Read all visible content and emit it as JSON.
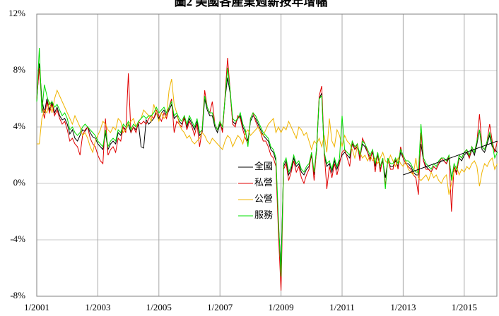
{
  "chart_data": {
    "type": "line",
    "title": "圖2 美國各產業週薪按年增幅",
    "categories": [
      "1/2001",
      null,
      null,
      null,
      null,
      null,
      null,
      null,
      null,
      null,
      null,
      null,
      null,
      null,
      null,
      null,
      null,
      null,
      null,
      null,
      null,
      null,
      null,
      null,
      "1/2003",
      null,
      null,
      null,
      null,
      null,
      null,
      null,
      null,
      null,
      null,
      null,
      null,
      null,
      null,
      null,
      null,
      null,
      null,
      null,
      null,
      null,
      null,
      null,
      "1/2005",
      null,
      null,
      null,
      null,
      null,
      null,
      null,
      null,
      null,
      null,
      null,
      null,
      null,
      null,
      null,
      null,
      null,
      null,
      null,
      null,
      null,
      null,
      null,
      "1/2007",
      null,
      null,
      null,
      null,
      null,
      null,
      null,
      null,
      null,
      null,
      null,
      null,
      null,
      null,
      null,
      null,
      null,
      null,
      null,
      null,
      null,
      null,
      null,
      "1/2009",
      null,
      null,
      null,
      null,
      null,
      null,
      null,
      null,
      null,
      null,
      null,
      null,
      null,
      null,
      null,
      null,
      null,
      null,
      null,
      null,
      null,
      null,
      null,
      "1/2011",
      null,
      null,
      null,
      null,
      null,
      null,
      null,
      null,
      null,
      null,
      null,
      null,
      null,
      null,
      null,
      null,
      null,
      null,
      null,
      null,
      null,
      null,
      null,
      "1/2013",
      null,
      null,
      null,
      null,
      null,
      null,
      null,
      null,
      null,
      null,
      null,
      null,
      null,
      null,
      null,
      null,
      null,
      null,
      null,
      null,
      null,
      null,
      null,
      "1/2015",
      null,
      null,
      null,
      null,
      null,
      null,
      null,
      null,
      null,
      null,
      null,
      null,
      null
    ],
    "series": [
      {
        "name": "全國",
        "color": "#000000",
        "values": [
          5.8,
          8.5,
          6.0,
          5.0,
          6.0,
          5.2,
          5.8,
          5.0,
          5.4,
          4.8,
          4.5,
          4.6,
          4.2,
          3.5,
          3.8,
          3.2,
          3.0,
          3.4,
          3.8,
          3.7,
          4.0,
          3.6,
          3.3,
          3.2,
          2.8,
          2.6,
          2.4,
          3.6,
          2.4,
          2.8,
          3.0,
          2.8,
          3.6,
          3.4,
          4.0,
          3.8,
          4.2,
          3.6,
          4.0,
          3.8,
          4.2,
          2.6,
          2.5,
          4.5,
          4.2,
          4.4,
          4.6,
          5.0,
          4.6,
          5.0,
          5.2,
          4.8,
          5.2,
          5.6,
          4.6,
          4.8,
          4.4,
          4.2,
          4.6,
          4.0,
          4.6,
          4.2,
          3.8,
          4.4,
          3.4,
          3.6,
          6.0,
          5.2,
          4.8,
          4.8,
          4.0,
          3.6,
          4.2,
          3.8,
          6.0,
          7.5,
          6.4,
          4.4,
          4.2,
          4.6,
          4.8,
          4.0,
          3.6,
          3.0,
          4.4,
          4.8,
          4.6,
          4.2,
          3.8,
          3.4,
          3.2,
          3.0,
          2.4,
          2.2,
          1.6,
          -3.0,
          -6.0,
          1.2,
          1.6,
          0.6,
          1.0,
          1.8,
          1.2,
          1.4,
          0.8,
          0.6,
          1.0,
          1.2,
          2.0,
          0.6,
          2.4,
          6.0,
          6.4,
          2.0,
          1.2,
          1.4,
          0.8,
          1.6,
          1.0,
          1.6,
          2.0,
          2.2,
          2.0,
          1.8,
          2.8,
          2.4,
          2.6,
          1.8,
          2.8,
          2.6,
          2.2,
          1.8,
          2.2,
          1.2,
          2.0,
          1.0,
          1.6,
          0.4,
          1.6,
          1.2,
          1.2,
          1.6,
          1.2,
          2.2,
          1.8,
          1.4,
          1.4,
          1.2,
          0.8,
          0.6,
          0.6,
          2.8,
          1.6,
          1.2,
          1.0,
          0.8,
          1.2,
          1.0,
          1.4,
          1.6,
          1.6,
          1.4,
          1.8,
          0.4,
          1.2,
          0.8,
          1.8,
          1.6,
          2.0,
          2.2,
          1.8,
          2.4,
          2.0,
          2.8,
          3.8,
          2.4,
          2.2,
          2.8,
          3.4,
          2.6,
          2.4,
          2.2
        ]
      },
      {
        "name": "私營",
        "color": "#e00000",
        "values": [
          6.0,
          8.2,
          5.6,
          4.6,
          5.8,
          5.0,
          5.6,
          4.8,
          5.2,
          4.6,
          4.2,
          4.4,
          3.8,
          3.0,
          3.2,
          2.8,
          2.6,
          2.0,
          3.4,
          3.8,
          4.0,
          3.2,
          2.8,
          2.6,
          2.0,
          1.6,
          1.4,
          4.6,
          2.0,
          2.4,
          2.6,
          2.2,
          3.2,
          3.0,
          4.0,
          3.6,
          7.8,
          3.6,
          4.0,
          3.6,
          4.4,
          4.2,
          4.4,
          4.2,
          4.6,
          4.8,
          4.6,
          5.2,
          4.8,
          4.4,
          5.0,
          4.6,
          5.4,
          6.0,
          3.6,
          4.4,
          4.2,
          4.0,
          4.8,
          3.8,
          4.4,
          4.0,
          3.4,
          4.2,
          2.6,
          3.8,
          6.6,
          5.4,
          5.0,
          5.8,
          4.2,
          3.8,
          4.4,
          3.6,
          6.2,
          8.9,
          6.6,
          4.2,
          4.0,
          4.8,
          4.6,
          3.8,
          3.2,
          2.8,
          4.6,
          5.0,
          4.4,
          4.0,
          3.6,
          3.0,
          3.0,
          2.6,
          2.0,
          1.8,
          1.2,
          -3.6,
          -7.6,
          1.0,
          1.4,
          0.2,
          0.8,
          1.6,
          0.8,
          1.2,
          0.4,
          0.0,
          0.6,
          1.0,
          2.2,
          0.2,
          2.6,
          6.2,
          6.9,
          2.2,
          -0.4,
          1.2,
          0.4,
          1.4,
          0.6,
          1.4,
          2.2,
          2.4,
          1.8,
          1.2,
          3.0,
          2.4,
          2.8,
          1.6,
          3.2,
          2.8,
          2.2,
          1.6,
          2.4,
          0.8,
          2.2,
          0.8,
          1.8,
          -0.2,
          1.8,
          1.0,
          1.0,
          1.8,
          1.0,
          2.6,
          1.8,
          1.4,
          1.2,
          1.0,
          0.6,
          0.4,
          -0.8,
          3.6,
          1.6,
          1.0,
          1.0,
          0.8,
          1.2,
          1.0,
          1.4,
          1.8,
          1.6,
          1.4,
          2.0,
          -2.0,
          1.2,
          0.6,
          2.0,
          1.8,
          2.2,
          2.4,
          1.8,
          2.6,
          2.2,
          3.0,
          4.9,
          2.6,
          2.4,
          3.0,
          4.2,
          3.0,
          2.2,
          3.0
        ]
      },
      {
        "name": "公營",
        "color": "#f0b400",
        "values": [
          2.8,
          2.8,
          4.6,
          5.2,
          5.0,
          5.8,
          5.0,
          6.0,
          6.6,
          6.2,
          5.8,
          5.4,
          5.0,
          4.6,
          4.2,
          4.8,
          4.4,
          4.0,
          3.4,
          3.6,
          3.2,
          2.6,
          2.2,
          3.0,
          3.4,
          3.8,
          4.4,
          4.2,
          3.8,
          3.6,
          4.0,
          3.8,
          4.6,
          4.4,
          3.6,
          3.8,
          4.2,
          4.4,
          4.6,
          4.0,
          4.4,
          4.6,
          5.2,
          5.0,
          4.8,
          4.4,
          5.6,
          5.0,
          4.4,
          5.0,
          4.6,
          4.8,
          6.6,
          7.4,
          5.6,
          5.0,
          4.2,
          3.8,
          3.6,
          3.2,
          3.4,
          3.0,
          2.8,
          3.0,
          3.2,
          3.6,
          3.4,
          3.0,
          2.8,
          3.2,
          3.0,
          2.8,
          2.6,
          2.4,
          3.0,
          3.4,
          3.2,
          2.6,
          3.0,
          3.4,
          3.2,
          2.8,
          3.6,
          3.8,
          3.4,
          3.6,
          3.8,
          4.0,
          3.6,
          3.4,
          3.8,
          4.2,
          4.4,
          4.6,
          3.6,
          4.0,
          3.6,
          4.0,
          3.8,
          4.4,
          4.0,
          3.6,
          3.2,
          4.0,
          3.8,
          3.4,
          3.6,
          3.0,
          2.4,
          3.0,
          2.8,
          3.2,
          2.6,
          3.4,
          2.2,
          4.6,
          3.0,
          2.6,
          3.8,
          3.4,
          2.6,
          3.4,
          3.0,
          2.8,
          2.4,
          1.8,
          2.6,
          2.2,
          1.8,
          2.0,
          1.6,
          2.0,
          1.6,
          1.8,
          1.4,
          1.8,
          2.2,
          1.6,
          1.4,
          2.0,
          1.6,
          1.2,
          1.8,
          1.4,
          1.2,
          1.6,
          1.0,
          0.8,
          0.6,
          1.8,
          0.4,
          0.2,
          0.4,
          0.6,
          0.2,
          0.8,
          0.4,
          0.6,
          0.2,
          0.0,
          0.4,
          0.6,
          -0.8,
          0.0,
          0.8,
          1.2,
          0.6,
          1.0,
          0.8,
          1.2,
          1.0,
          1.4,
          1.6,
          1.2,
          -0.2,
          0.8,
          1.4,
          1.2,
          1.6,
          1.8,
          1.0,
          1.4
        ]
      },
      {
        "name": "服務",
        "color": "#00e000",
        "values": [
          5.8,
          9.6,
          5.0,
          7.0,
          6.2,
          5.6,
          5.8,
          5.4,
          5.6,
          5.2,
          4.8,
          5.0,
          4.6,
          3.8,
          4.0,
          3.6,
          3.4,
          3.6,
          4.0,
          4.2,
          4.0,
          3.8,
          3.6,
          3.4,
          3.0,
          2.8,
          2.6,
          3.8,
          2.6,
          3.0,
          3.2,
          3.0,
          3.8,
          3.6,
          4.2,
          4.0,
          4.4,
          3.8,
          4.2,
          4.0,
          4.4,
          4.6,
          4.8,
          4.6,
          4.8,
          4.8,
          5.0,
          5.4,
          5.0,
          5.2,
          5.4,
          5.0,
          5.4,
          5.8,
          4.8,
          5.0,
          4.6,
          4.4,
          4.8,
          4.2,
          4.8,
          4.4,
          4.0,
          4.6,
          3.6,
          3.8,
          6.2,
          5.4,
          5.0,
          5.0,
          4.2,
          3.8,
          4.4,
          4.0,
          6.0,
          8.2,
          6.6,
          4.6,
          4.4,
          4.6,
          5.0,
          4.2,
          3.8,
          2.6,
          4.6,
          5.0,
          4.8,
          4.4,
          4.0,
          3.6,
          3.4,
          3.2,
          2.6,
          2.4,
          1.8,
          -2.6,
          -6.6,
          1.4,
          1.8,
          0.8,
          1.2,
          2.0,
          1.4,
          1.6,
          1.0,
          0.8,
          1.2,
          1.4,
          2.2,
          0.8,
          2.6,
          6.0,
          6.2,
          2.2,
          1.4,
          1.6,
          1.0,
          1.8,
          1.2,
          1.8,
          4.8,
          2.4,
          2.2,
          2.0,
          3.0,
          2.6,
          2.8,
          2.0,
          3.0,
          2.8,
          2.4,
          2.0,
          2.4,
          1.4,
          2.2,
          1.2,
          1.8,
          -0.4,
          1.8,
          1.4,
          1.4,
          1.8,
          1.4,
          2.4,
          2.0,
          1.6,
          1.6,
          1.4,
          1.0,
          0.8,
          0.8,
          4.2,
          1.8,
          1.4,
          1.2,
          1.0,
          1.4,
          1.2,
          1.6,
          1.8,
          1.8,
          1.6,
          2.0,
          0.2,
          1.4,
          1.0,
          2.0,
          1.8,
          2.2,
          2.4,
          2.0,
          2.6,
          2.2,
          3.0,
          3.8,
          2.6,
          2.4,
          3.0,
          3.6,
          2.8,
          1.8,
          2.2
        ]
      }
    ],
    "trendline": {
      "color": "#000000",
      "x": [
        144,
        181
      ],
      "values": [
        0.6,
        3.0
      ]
    },
    "ylim": [
      -8,
      12
    ],
    "yticks": [
      {
        "value": -8,
        "label": "-8%"
      },
      {
        "value": -4,
        "label": "-4%"
      },
      {
        "value": 0,
        "label": "0%"
      },
      {
        "value": 4,
        "label": "4%"
      },
      {
        "value": 8,
        "label": "8%"
      },
      {
        "value": 12,
        "label": "12%"
      }
    ],
    "grid": true
  }
}
